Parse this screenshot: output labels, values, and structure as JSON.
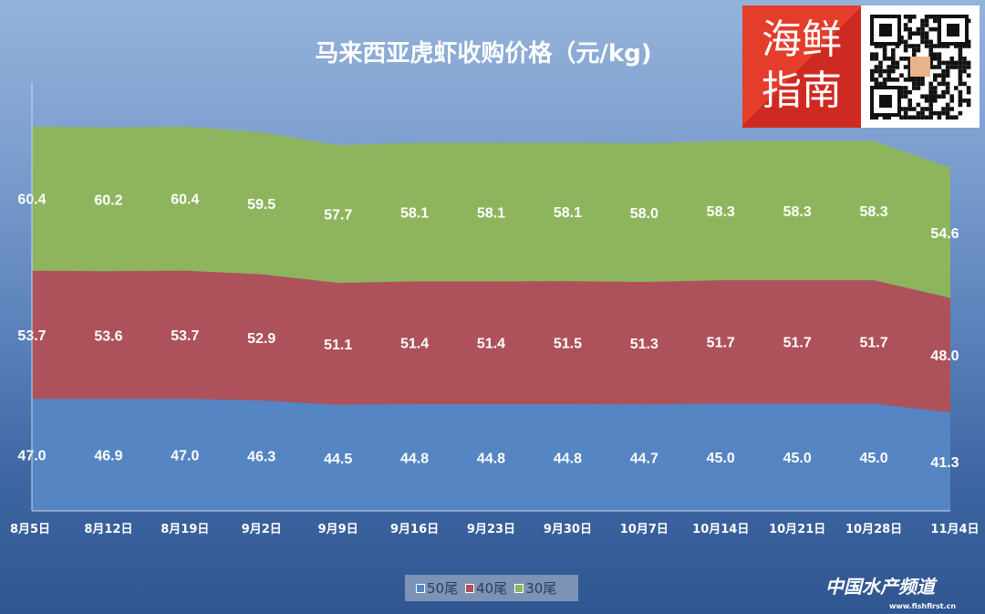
{
  "chart_data": {
    "type": "area",
    "stacked": true,
    "title": "马来西亚虎虾收购价格（元/kg)",
    "categories": [
      "8月5日",
      "8月12日",
      "8月19日",
      "9月2日",
      "9月9日",
      "9月16日",
      "9月23日",
      "9月30日",
      "10月7日",
      "10月14日",
      "10月21日",
      "10月28日",
      "11月4日"
    ],
    "series": [
      {
        "name": "50尾",
        "color": "#5585c3",
        "values": [
          47.0,
          46.9,
          47.0,
          46.3,
          44.5,
          44.8,
          44.8,
          44.8,
          44.7,
          45.0,
          45.0,
          45.0,
          41.3
        ]
      },
      {
        "name": "40尾",
        "color": "#ad525a",
        "values": [
          53.7,
          53.6,
          53.7,
          52.9,
          51.1,
          51.4,
          51.4,
          51.5,
          51.3,
          51.7,
          51.7,
          51.7,
          48.0
        ]
      },
      {
        "name": "30尾",
        "color": "#8eb55d",
        "values": [
          60.4,
          60.2,
          60.4,
          59.5,
          57.7,
          58.1,
          58.1,
          58.1,
          58.0,
          58.3,
          58.3,
          58.3,
          54.6
        ]
      }
    ],
    "xlabel": "",
    "ylabel": "",
    "legend": "bottom"
  },
  "logo": {
    "text": "海鲜指南"
  },
  "watermark": {
    "name": "中国水产频道",
    "url": "www.fishfirst.cn"
  }
}
